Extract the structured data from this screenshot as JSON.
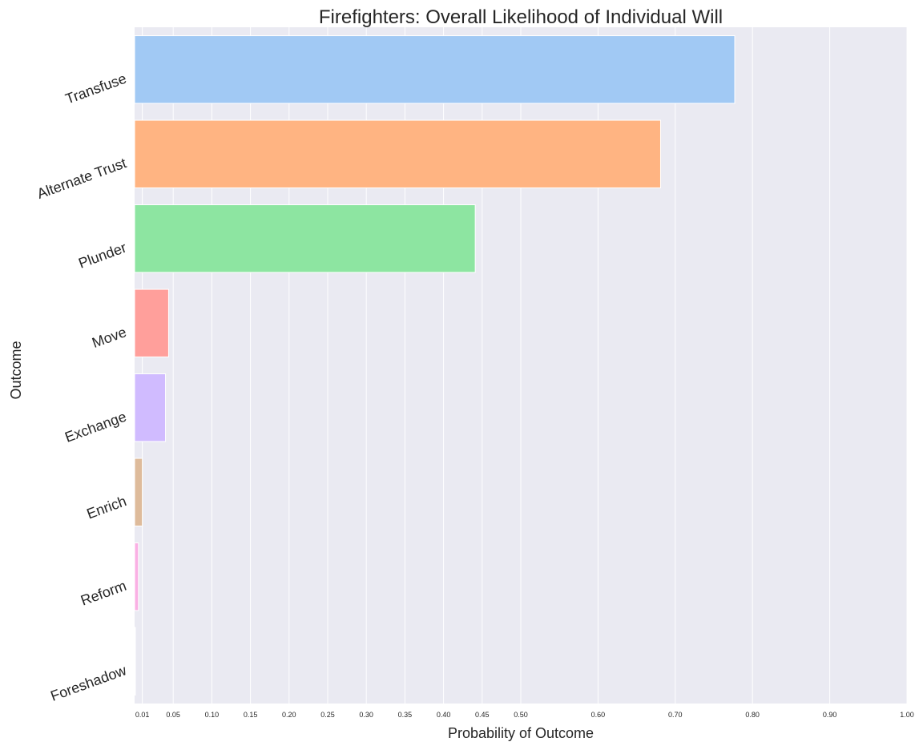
{
  "chart_data": {
    "type": "bar",
    "orientation": "horizontal",
    "title": "Firefighters: Overall Likelihood of Individual Will",
    "xlabel": "Probability of Outcome",
    "ylabel": "Outcome",
    "xlim": [
      0,
      1.0
    ],
    "xticks": [
      0.01,
      0.05,
      0.1,
      0.15,
      0.2,
      0.25,
      0.3,
      0.35,
      0.4,
      0.45,
      0.5,
      0.6,
      0.7,
      0.8,
      0.9,
      1.0
    ],
    "xtick_labels": [
      "0.01",
      "0.05",
      "0.10",
      "0.15",
      "0.20",
      "0.25",
      "0.30",
      "0.35",
      "0.40",
      "0.45",
      "0.50",
      "0.60",
      "0.70",
      "0.80",
      "0.90",
      "1.00"
    ],
    "grid": true,
    "background": "#eaeaf2",
    "categories": [
      "Transfuse",
      "Alternate Trust",
      "Plunder",
      "Move",
      "Exchange",
      "Enrich",
      "Reform",
      "Foreshadow"
    ],
    "values": [
      0.777,
      0.681,
      0.441,
      0.044,
      0.04,
      0.01,
      0.005,
      0.001
    ],
    "colors": [
      "#a1c9f4",
      "#ffb482",
      "#8de5a1",
      "#ff9f9b",
      "#d0bbff",
      "#debb9b",
      "#fab0e4",
      "#cfcfcf"
    ]
  }
}
